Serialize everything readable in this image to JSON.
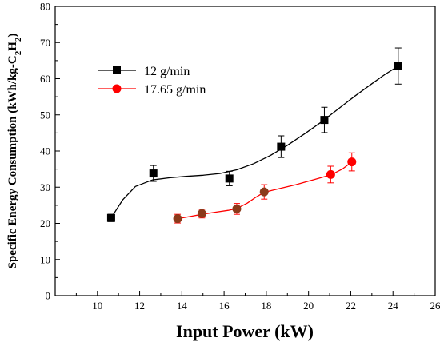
{
  "chart_data": {
    "type": "line",
    "xlabel": "Input Power (kW)",
    "ylabel": "Specific Energy Consumption (kWh/kg-C2H2)",
    "ylabel_parts": {
      "main": "Specific Energy Consumption (kWh/kg-C",
      "sub1": "2",
      "mid": "H",
      "sub2": "2"
    },
    "xlim": [
      8,
      26
    ],
    "ylim": [
      0,
      80
    ],
    "xticks": [
      10,
      12,
      14,
      16,
      18,
      20,
      22,
      24,
      26
    ],
    "yticks": [
      0,
      10,
      20,
      30,
      40,
      50,
      60,
      70,
      80
    ],
    "legend_position": "top-left",
    "grid": false,
    "series": [
      {
        "name": "12 g/min",
        "color": "#000000",
        "marker": "square",
        "x": [
          10.65,
          12.65,
          16.25,
          18.7,
          20.75,
          24.25
        ],
        "y": [
          21.5,
          33.8,
          32.4,
          41.2,
          48.6,
          63.5
        ],
        "err": [
          1.0,
          2.2,
          2.0,
          3.0,
          3.5,
          5.0
        ],
        "fit_curve": [
          [
            10.65,
            21.5
          ],
          [
            11.2,
            26.5
          ],
          [
            11.8,
            30.2
          ],
          [
            12.6,
            32.0
          ],
          [
            13.4,
            32.6
          ],
          [
            14.2,
            33.0
          ],
          [
            15.0,
            33.3
          ],
          [
            15.8,
            33.8
          ],
          [
            16.6,
            34.8
          ],
          [
            17.4,
            36.5
          ],
          [
            18.2,
            38.8
          ],
          [
            19.0,
            41.6
          ],
          [
            19.8,
            44.7
          ],
          [
            20.6,
            48.0
          ],
          [
            21.4,
            51.6
          ],
          [
            22.2,
            55.2
          ],
          [
            23.0,
            58.6
          ],
          [
            23.6,
            61.1
          ],
          [
            24.25,
            63.5
          ]
        ]
      },
      {
        "name": "17.65 g/min",
        "color": "#ff0000",
        "marker": "circle",
        "x": [
          13.8,
          14.95,
          16.6,
          17.9,
          21.05,
          22.05
        ],
        "y": [
          21.3,
          22.7,
          24.0,
          28.7,
          33.5,
          37.0
        ],
        "err": [
          1.2,
          1.2,
          1.5,
          2.0,
          2.3,
          2.5
        ],
        "fit_curve": [
          [
            13.8,
            21.3
          ],
          [
            14.4,
            21.9
          ],
          [
            14.95,
            22.5
          ],
          [
            15.6,
            23.1
          ],
          [
            16.2,
            23.6
          ],
          [
            16.6,
            24.1
          ],
          [
            17.1,
            25.6
          ],
          [
            17.5,
            27.2
          ],
          [
            17.9,
            28.6
          ],
          [
            18.6,
            29.6
          ],
          [
            19.4,
            30.7
          ],
          [
            20.2,
            32.0
          ],
          [
            21.05,
            33.4
          ],
          [
            21.6,
            35.0
          ],
          [
            22.05,
            37.0
          ]
        ]
      }
    ]
  }
}
